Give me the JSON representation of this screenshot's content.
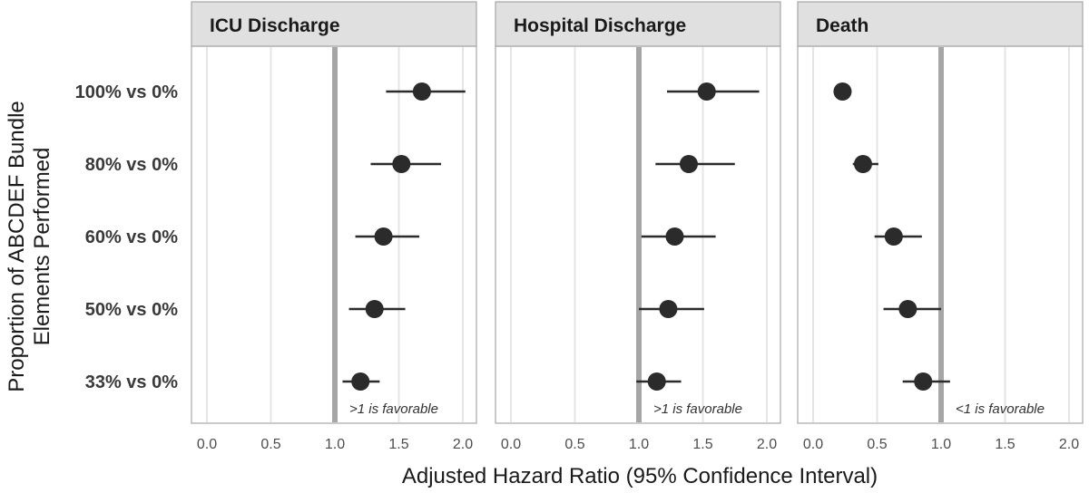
{
  "chart_data": {
    "type": "scatter",
    "subtype": "forest-plot",
    "categories": [
      "100% vs 0%",
      "80% vs 0%",
      "60% vs 0%",
      "50% vs 0%",
      "33% vs 0%"
    ],
    "xlabel": "Adjusted Hazard Ratio (95% Confidence Interval)",
    "ylabel": "Proportion of ABCDEF Bundle Elements Performed",
    "xlim": [
      0,
      2.0
    ],
    "xticks": [
      "0.0",
      "0.5",
      "1.0",
      "1.5",
      "2.0"
    ],
    "xtick_values": [
      0,
      0.5,
      1.0,
      1.5,
      2.0
    ],
    "reference_line": 1.0,
    "grid": true,
    "panels": [
      {
        "title": "ICU Discharge",
        "note": ">1 is favorable",
        "estimates": [
          1.68,
          1.52,
          1.38,
          1.31,
          1.2
        ],
        "lower": [
          1.4,
          1.28,
          1.16,
          1.11,
          1.06
        ],
        "upper": [
          2.02,
          1.83,
          1.66,
          1.55,
          1.35
        ]
      },
      {
        "title": "Hospital Discharge",
        "note": ">1 is favorable",
        "estimates": [
          1.53,
          1.39,
          1.28,
          1.23,
          1.14
        ],
        "lower": [
          1.22,
          1.13,
          1.02,
          1.0,
          0.98
        ],
        "upper": [
          1.94,
          1.75,
          1.6,
          1.51,
          1.33
        ]
      },
      {
        "title": "Death",
        "note": "<1 is favorable",
        "estimates": [
          0.23,
          0.39,
          0.63,
          0.74,
          0.86
        ],
        "lower": [
          0.2,
          0.31,
          0.48,
          0.55,
          0.7
        ],
        "upper": [
          0.3,
          0.51,
          0.85,
          1.0,
          1.07
        ]
      }
    ],
    "colors": {
      "strip_bg": "#e0e0e0",
      "strip_border": "#a6a6a6",
      "grid": "#e5e5e5",
      "reference": "#a6a6a6",
      "point": "#2b2b2b"
    }
  }
}
